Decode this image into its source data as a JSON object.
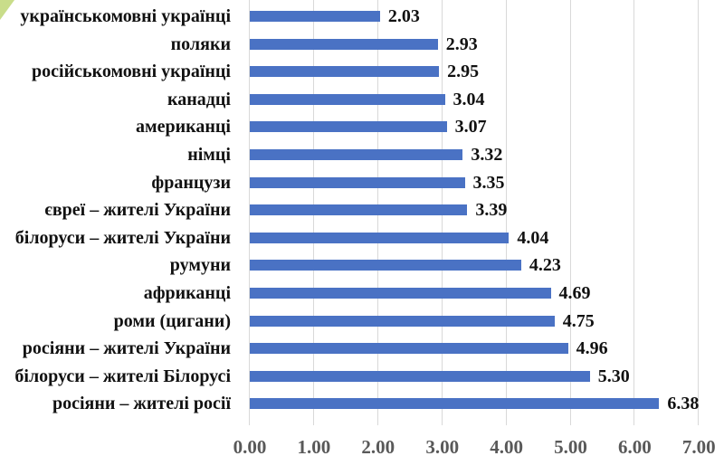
{
  "chart_data": {
    "type": "bar",
    "orientation": "horizontal",
    "title": "",
    "xlabel": "",
    "ylabel": "",
    "xlim": [
      0,
      7
    ],
    "grid": true,
    "legend": null,
    "bar_color": "#4a72c4",
    "categories": [
      "українськомовні українці",
      "поляки",
      "російськомовні українці",
      "канадці",
      "американці",
      "німці",
      "французи",
      "євреї – жителі України",
      "білоруси – жителі України",
      "румуни",
      "африканці",
      "роми (цигани)",
      "росіяни – жителі України",
      "білоруси – жителі Білорусі",
      "росіяни – жителі росії"
    ],
    "values": [
      2.03,
      2.93,
      2.95,
      3.04,
      3.07,
      3.32,
      3.35,
      3.39,
      4.04,
      4.23,
      4.69,
      4.75,
      4.96,
      5.3,
      6.38
    ],
    "value_labels": [
      "2.03",
      "2.93",
      "2.95",
      "3.04",
      "3.07",
      "3.32",
      "3.35",
      "3.39",
      "4.04",
      "4.23",
      "4.69",
      "4.75",
      "4.96",
      "5.30",
      "6.38"
    ],
    "x_ticks": [
      "0.00",
      "1.00",
      "2.00",
      "3.00",
      "4.00",
      "5.00",
      "6.00",
      "7.00"
    ]
  }
}
